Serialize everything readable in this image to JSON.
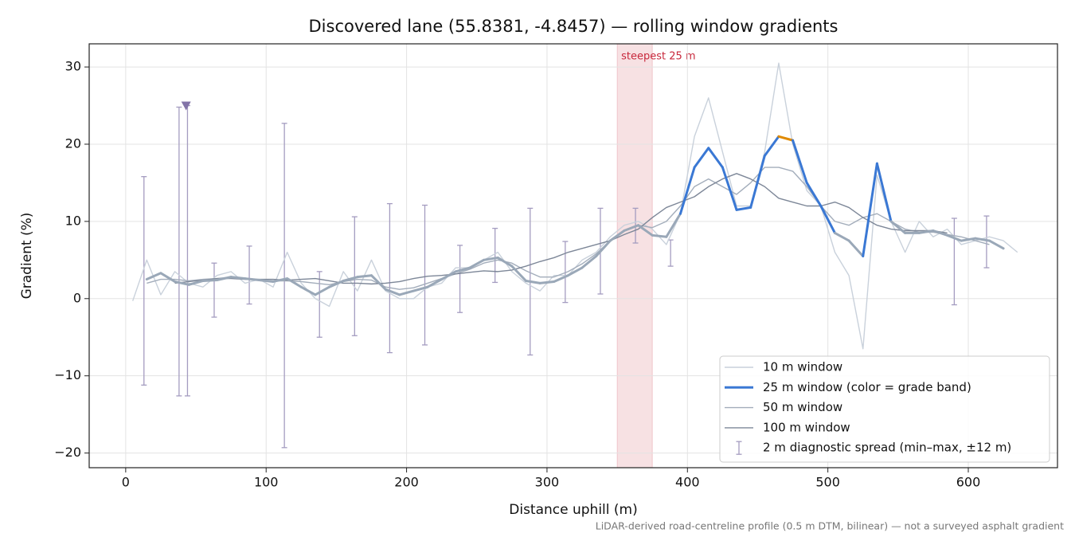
{
  "chart_data": {
    "type": "line",
    "title": "Discovered lane (55.8381, -4.8457) — rolling window gradients",
    "x_label": "Distance uphill (m)",
    "y_label": "Gradient (%)",
    "footnote": "LiDAR-derived road-centreline profile (0.5 m DTM, bilinear) — not a surveyed asphalt gradient",
    "xlim": [
      -26,
      663.5
    ],
    "ylim": [
      -21.9,
      33
    ],
    "xticks": [
      0,
      100,
      200,
      300,
      400,
      500,
      600
    ],
    "yticks": [
      {
        "value": -20,
        "label": "−20"
      },
      {
        "value": -10,
        "label": "−10"
      },
      0,
      10,
      20,
      30
    ],
    "grid": true,
    "legend": "lower right",
    "x": [
      5,
      15,
      25,
      35,
      45,
      55,
      65,
      75,
      85,
      95,
      105,
      115,
      125,
      135,
      145,
      155,
      165,
      175,
      185,
      195,
      205,
      215,
      225,
      235,
      245,
      255,
      265,
      275,
      285,
      295,
      305,
      315,
      325,
      335,
      345,
      355,
      365,
      375,
      385,
      395,
      405,
      415,
      425,
      435,
      445,
      455,
      465,
      475,
      485,
      495,
      505,
      515,
      525,
      535,
      545,
      555,
      565,
      575,
      585,
      595,
      605,
      615,
      625,
      635
    ],
    "series": [
      {
        "name": "10 m window",
        "color": "#c9d1db",
        "values": [
          -0.3,
          5,
          0.5,
          3.5,
          2,
          1.5,
          3,
          3.5,
          2,
          2.5,
          1.5,
          6,
          2,
          0,
          -1,
          3.5,
          1,
          5,
          1,
          0,
          0,
          1.5,
          2,
          4,
          4,
          5,
          6,
          3.5,
          2,
          1,
          3,
          3,
          5,
          6,
          8,
          9.5,
          10,
          9,
          7,
          11,
          21,
          26,
          19,
          12,
          12,
          19,
          30.5,
          20,
          14,
          12,
          6,
          3,
          -6.5,
          16,
          10,
          6,
          10,
          8,
          9,
          7,
          7.5,
          8,
          7.5,
          6
        ]
      },
      {
        "name": "25 m window (color = grade band)",
        "color": "#9aa8b8",
        "grade_bands": [
          {
            "from": 10,
            "color": "#3a78d4"
          },
          {
            "from": 20,
            "color": "#e08a00"
          }
        ],
        "values": [
          null,
          2.5,
          3.3,
          2.2,
          1.8,
          2.3,
          2.4,
          2.8,
          2.6,
          2.4,
          2.2,
          2.6,
          1.5,
          0.5,
          1.5,
          2.3,
          2.8,
          3.0,
          1.2,
          0.5,
          1.0,
          1.5,
          2.5,
          3.5,
          4.0,
          5.0,
          5.3,
          4.2,
          2.3,
          2.0,
          2.2,
          3.0,
          4.0,
          5.5,
          7.5,
          8.8,
          9.5,
          8.2,
          8.0,
          11,
          17,
          19.5,
          17,
          11.5,
          11.8,
          18.5,
          21,
          20.5,
          15,
          12,
          8.5,
          7.5,
          5.5,
          17.5,
          10,
          8.5,
          8.5,
          8.8,
          8.2,
          7.5,
          7.8,
          7.5,
          6.5,
          null
        ]
      },
      {
        "name": "50 m window",
        "color": "#a3adbb",
        "values": [
          null,
          2.0,
          2.5,
          2.5,
          2.3,
          2.5,
          2.6,
          2.8,
          2.6,
          2.4,
          2.3,
          2.3,
          2.2,
          2.0,
          1.8,
          2.2,
          2.5,
          2.4,
          1.5,
          1.2,
          1.4,
          2.0,
          2.6,
          3.2,
          3.8,
          4.6,
          5.0,
          4.6,
          3.6,
          2.8,
          2.8,
          3.5,
          4.5,
          5.8,
          7.5,
          8.8,
          9.5,
          9.2,
          10,
          12,
          14.5,
          15.5,
          14.5,
          13.5,
          15,
          17,
          17,
          16.5,
          14.5,
          12,
          10,
          9.5,
          10.5,
          11,
          10,
          9,
          8.6,
          8.6,
          8.3,
          8,
          7.5,
          7,
          null,
          null
        ]
      },
      {
        "name": "100 m window",
        "color": "#7d8798",
        "values": [
          null,
          null,
          null,
          2.0,
          2.2,
          2.4,
          2.6,
          2.6,
          2.5,
          2.5,
          2.5,
          2.4,
          2.5,
          2.6,
          2.3,
          2.0,
          2.0,
          1.9,
          2.0,
          2.2,
          2.6,
          2.9,
          3.0,
          3.2,
          3.4,
          3.6,
          3.5,
          3.7,
          4.2,
          4.8,
          5.3,
          6.0,
          6.5,
          7.0,
          7.5,
          8.3,
          9.0,
          10.5,
          11.8,
          12.5,
          13.2,
          14.5,
          15.5,
          16.2,
          15.5,
          14.5,
          13,
          12.5,
          12,
          12,
          12.5,
          11.8,
          10.5,
          9.5,
          9.0,
          8.8,
          8.8,
          8.8,
          8.5,
          null,
          null,
          null,
          null,
          null
        ]
      }
    ],
    "diagnostic": {
      "name": "2 m diagnostic spread (min–max, ±12 m)",
      "color": "#a49cc0",
      "x": [
        13,
        38,
        44,
        63,
        88,
        113,
        138,
        163,
        188,
        213,
        238,
        263,
        288,
        313,
        338,
        363,
        388,
        590,
        613
      ],
      "low": [
        -11.2,
        -12.6,
        -12.6,
        -2.4,
        -0.7,
        -19.3,
        -5,
        -4.8,
        -7,
        -6,
        -1.8,
        2.1,
        -7.3,
        -0.5,
        0.6,
        7.2,
        4.2,
        -0.8,
        4
      ],
      "high": [
        15.8,
        24.8,
        25,
        4.6,
        6.8,
        22.7,
        3.5,
        10.6,
        12.3,
        12.1,
        6.9,
        9.1,
        11.7,
        7.4,
        11.7,
        11.7,
        7.6,
        10.4,
        10.7
      ]
    },
    "marker": {
      "x": 43,
      "y": 25,
      "color": "#8374a8"
    },
    "span": {
      "from": 350,
      "to": 375,
      "label": "steepest 25 m",
      "color": "#c8283c"
    }
  }
}
